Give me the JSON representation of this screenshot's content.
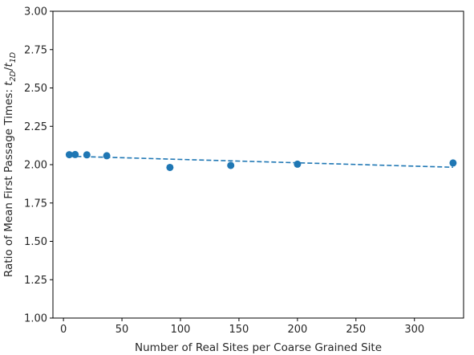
{
  "chart_data": {
    "type": "scatter",
    "xlabel": "Number of Real Sites per Coarse Grained Site",
    "ylabel_parts": {
      "prefix": "Ratio of Mean First Passage Times: ",
      "t": "t",
      "num_sub": "2D",
      "slash": "/",
      "den_sub": "1D"
    },
    "xlim": [
      -9,
      342
    ],
    "ylim": [
      1.0,
      3.0
    ],
    "xticks": [
      0,
      50,
      100,
      150,
      200,
      250,
      300
    ],
    "yticks": [
      1.0,
      1.25,
      1.5,
      1.75,
      2.0,
      2.25,
      2.5,
      2.75,
      3.0
    ],
    "ytick_labels": [
      "1.00",
      "1.25",
      "1.50",
      "1.75",
      "2.00",
      "2.25",
      "2.50",
      "2.75",
      "3.00"
    ],
    "series": [
      {
        "kind": "points",
        "color": "#1f77b4",
        "x": [
          5,
          10,
          20,
          37,
          91,
          143,
          200,
          333
        ],
        "y": [
          2.065,
          2.066,
          2.064,
          2.058,
          1.982,
          1.995,
          2.003,
          2.011
        ]
      },
      {
        "kind": "fit-line",
        "style": "dashed",
        "color": "#1f77b4",
        "x": [
          5,
          333
        ],
        "y": [
          2.055,
          1.983
        ]
      }
    ],
    "grid": false,
    "legend": "none"
  }
}
